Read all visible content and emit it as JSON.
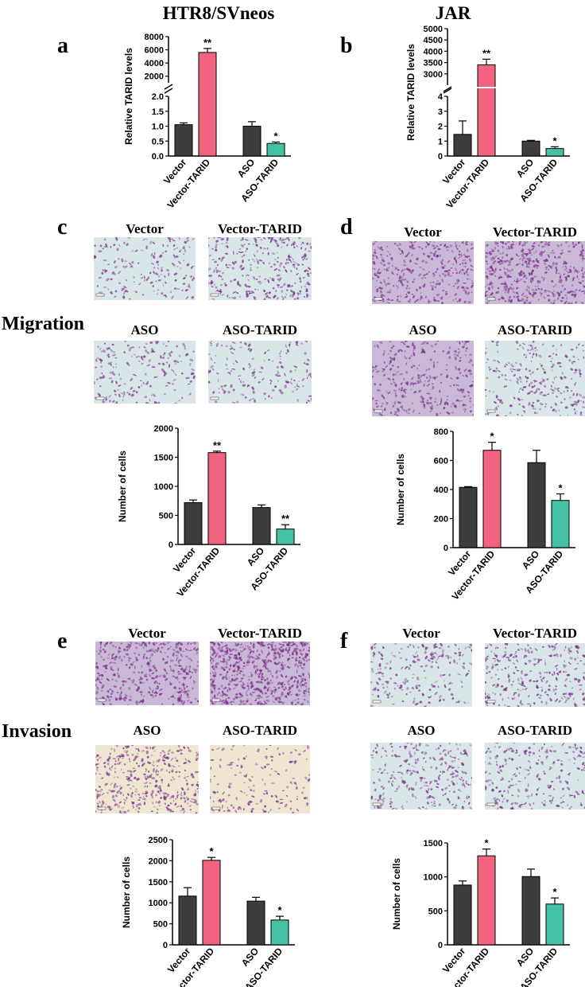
{
  "figure": {
    "column_titles": {
      "left": "HTR8/SVneos",
      "right": "JAR"
    },
    "panel_letters": {
      "a": "a",
      "b": "b",
      "c": "c",
      "d": "d",
      "e": "e",
      "f": "f"
    },
    "row_labels": {
      "migration": "Migration",
      "invasion": "Invasion"
    },
    "image_labels": {
      "vector": "Vector",
      "vector_tarid": "Vector-TARID",
      "aso": "ASO",
      "aso_tarid": "ASO-TARID"
    }
  },
  "colors": {
    "vector": "#3d3d3d",
    "vector_tarid": "#f2637f",
    "aso": "#3d3d3d",
    "aso_tarid": "#44c2a3",
    "stain_purple": "#7a2f8a",
    "bg_blue": "#d9e6e8",
    "bg_purple": "#c9b8d6",
    "bg_beige": "#efe6d2"
  },
  "chart_data": [
    {
      "id": "a",
      "type": "bar",
      "title": "",
      "ylabel": "Relative TARID levels",
      "xlabel": "",
      "categories": [
        "Vector",
        "Vector-TARID",
        "ASO",
        "ASO-TARID"
      ],
      "values": [
        1.05,
        5600,
        1.0,
        0.42
      ],
      "errors": [
        0.06,
        600,
        0.15,
        0.05
      ],
      "significance": [
        "",
        "**",
        "",
        "*"
      ],
      "axis_break": true,
      "ylim_lower": [
        0,
        2.0
      ],
      "yticks_lower": [
        "0.0",
        "0.5",
        "1.0",
        "1.5",
        "2.0"
      ],
      "ylim_upper": [
        1000,
        8000
      ],
      "yticks_upper": [
        "2000",
        "4000",
        "6000",
        "8000"
      ]
    },
    {
      "id": "b",
      "type": "bar",
      "title": "",
      "ylabel": "Relative TARID levels",
      "xlabel": "",
      "categories": [
        "Vector",
        "Vector-TARID",
        "ASO",
        "ASO-TARID"
      ],
      "values": [
        1.45,
        3400,
        1.0,
        0.5
      ],
      "errors": [
        0.9,
        250,
        0.05,
        0.12
      ],
      "significance": [
        "",
        "**",
        "",
        "*"
      ],
      "axis_break": true,
      "ylim_lower": [
        0,
        4
      ],
      "yticks_lower": [
        "0",
        "1",
        "2",
        "3",
        "4"
      ],
      "ylim_upper": [
        2500,
        5000
      ],
      "yticks_upper": [
        "3000",
        "3500",
        "4000",
        "4500",
        "5000"
      ]
    },
    {
      "id": "c",
      "type": "bar",
      "title": "",
      "ylabel": "Number of cells",
      "xlabel": "",
      "categories": [
        "Vector",
        "Vector-TARID",
        "ASO",
        "ASO-TARID"
      ],
      "values": [
        720,
        1580,
        635,
        265
      ],
      "errors": [
        45,
        25,
        45,
        75
      ],
      "significance": [
        "",
        "**",
        "",
        "**"
      ],
      "ylim": [
        0,
        2000
      ],
      "yticks": [
        "0",
        "500",
        "1000",
        "1500",
        "2000"
      ]
    },
    {
      "id": "d",
      "type": "bar",
      "title": "",
      "ylabel": "Number of cells",
      "xlabel": "",
      "categories": [
        "Vector",
        "Vector-TARID",
        "ASO",
        "ASO-TARID"
      ],
      "values": [
        415,
        670,
        585,
        325
      ],
      "errors": [
        5,
        55,
        85,
        45
      ],
      "significance": [
        "",
        "*",
        "",
        "*"
      ],
      "ylim": [
        0,
        800
      ],
      "yticks": [
        "0",
        "200",
        "400",
        "600",
        "800"
      ]
    },
    {
      "id": "e",
      "type": "bar",
      "title": "",
      "ylabel": "Number of cells",
      "xlabel": "",
      "categories": [
        "Vector",
        "Vector-TARID",
        "ASO",
        "ASO-TARID"
      ],
      "values": [
        1160,
        2010,
        1040,
        590
      ],
      "errors": [
        200,
        70,
        90,
        90
      ],
      "significance": [
        "",
        "*",
        "",
        "*"
      ],
      "ylim": [
        0,
        2500
      ],
      "yticks": [
        "0",
        "500",
        "1000",
        "1500",
        "2000",
        "2500"
      ]
    },
    {
      "id": "f",
      "type": "bar",
      "title": "",
      "ylabel": "Number of cells",
      "xlabel": "",
      "categories": [
        "Vector",
        "Vector-TARID",
        "ASO",
        "ASO-TARID"
      ],
      "values": [
        880,
        1310,
        1005,
        600
      ],
      "errors": [
        60,
        100,
        110,
        90
      ],
      "significance": [
        "",
        "*",
        "",
        "*"
      ],
      "ylim": [
        0,
        1500
      ],
      "yticks": [
        "0",
        "500",
        "1000",
        "1500"
      ]
    }
  ]
}
